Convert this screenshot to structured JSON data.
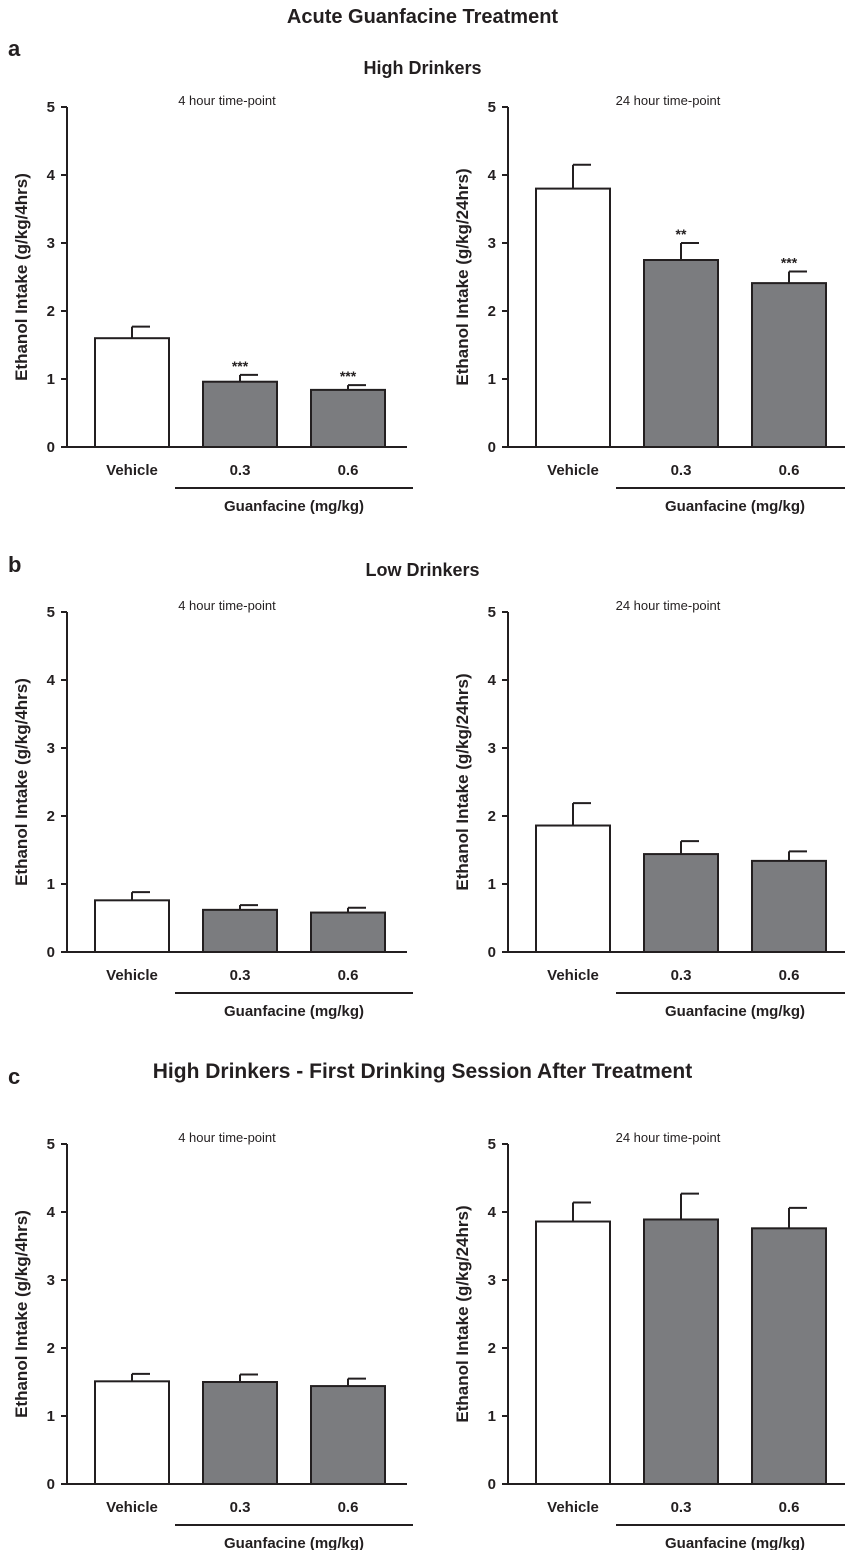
{
  "figure_title": "Acute Guanfacine Treatment",
  "panels": [
    {
      "letter": "a",
      "title": "High Drinkers"
    },
    {
      "letter": "b",
      "title": "Low Drinkers"
    },
    {
      "letter": "c",
      "title": "High Drinkers - First Drinking Session After Treatment"
    }
  ],
  "colors": {
    "vehicle_fill": "#ffffff",
    "drug_fill": "#7b7c7f",
    "stroke": "#231f20"
  },
  "chart_data": [
    {
      "type": "bar",
      "panel": "a",
      "subtitle": "4 hour time-point",
      "ylabel": "Ethanol Intake (g/kg/4hrs)",
      "ylim": [
        0,
        5
      ],
      "yticks": [
        0,
        1,
        2,
        3,
        4,
        5
      ],
      "categories": [
        "Vehicle",
        "0.3",
        "0.6"
      ],
      "group_label": "Guanfacine (mg/kg)",
      "values": [
        1.6,
        0.96,
        0.84
      ],
      "errors": [
        0.17,
        0.1,
        0.07
      ],
      "significance": [
        "",
        "***",
        "***"
      ]
    },
    {
      "type": "bar",
      "panel": "a",
      "subtitle": "24 hour time-point",
      "ylabel": "Ethanol Intake (g/kg/24hrs)",
      "ylim": [
        0,
        5
      ],
      "yticks": [
        0,
        1,
        2,
        3,
        4,
        5
      ],
      "categories": [
        "Vehicle",
        "0.3",
        "0.6"
      ],
      "group_label": "Guanfacine (mg/kg)",
      "values": [
        3.8,
        2.75,
        2.41
      ],
      "errors": [
        0.35,
        0.25,
        0.17
      ],
      "significance": [
        "",
        "**",
        "***"
      ]
    },
    {
      "type": "bar",
      "panel": "b",
      "subtitle": "4 hour time-point",
      "ylabel": "Ethanol Intake (g/kg/4hrs)",
      "ylim": [
        0,
        5
      ],
      "yticks": [
        0,
        1,
        2,
        3,
        4,
        5
      ],
      "categories": [
        "Vehicle",
        "0.3",
        "0.6"
      ],
      "group_label": "Guanfacine (mg/kg)",
      "values": [
        0.76,
        0.62,
        0.58
      ],
      "errors": [
        0.12,
        0.07,
        0.07
      ],
      "significance": [
        "",
        "",
        ""
      ]
    },
    {
      "type": "bar",
      "panel": "b",
      "subtitle": "24 hour time-point",
      "ylabel": "Ethanol Intake (g/kg/24hrs)",
      "ylim": [
        0,
        5
      ],
      "yticks": [
        0,
        1,
        2,
        3,
        4,
        5
      ],
      "categories": [
        "Vehicle",
        "0.3",
        "0.6"
      ],
      "group_label": "Guanfacine (mg/kg)",
      "values": [
        1.86,
        1.44,
        1.34
      ],
      "errors": [
        0.33,
        0.19,
        0.14
      ],
      "significance": [
        "",
        "",
        ""
      ]
    },
    {
      "type": "bar",
      "panel": "c",
      "subtitle": "4 hour time-point",
      "ylabel": "Ethanol Intake (g/kg/4hrs)",
      "ylim": [
        0,
        5
      ],
      "yticks": [
        0,
        1,
        2,
        3,
        4,
        5
      ],
      "categories": [
        "Vehicle",
        "0.3",
        "0.6"
      ],
      "group_label": "Guanfacine (mg/kg)",
      "values": [
        1.51,
        1.5,
        1.44
      ],
      "errors": [
        0.11,
        0.11,
        0.11
      ],
      "significance": [
        "",
        "",
        ""
      ]
    },
    {
      "type": "bar",
      "panel": "c",
      "subtitle": "24 hour time-point",
      "ylabel": "Ethanol Intake (g/kg/24hrs)",
      "ylim": [
        0,
        5
      ],
      "yticks": [
        0,
        1,
        2,
        3,
        4,
        5
      ],
      "categories": [
        "Vehicle",
        "0.3",
        "0.6"
      ],
      "group_label": "Guanfacine (mg/kg)",
      "values": [
        3.86,
        3.89,
        3.76
      ],
      "errors": [
        0.28,
        0.38,
        0.3
      ],
      "significance": [
        "",
        "",
        ""
      ]
    }
  ]
}
